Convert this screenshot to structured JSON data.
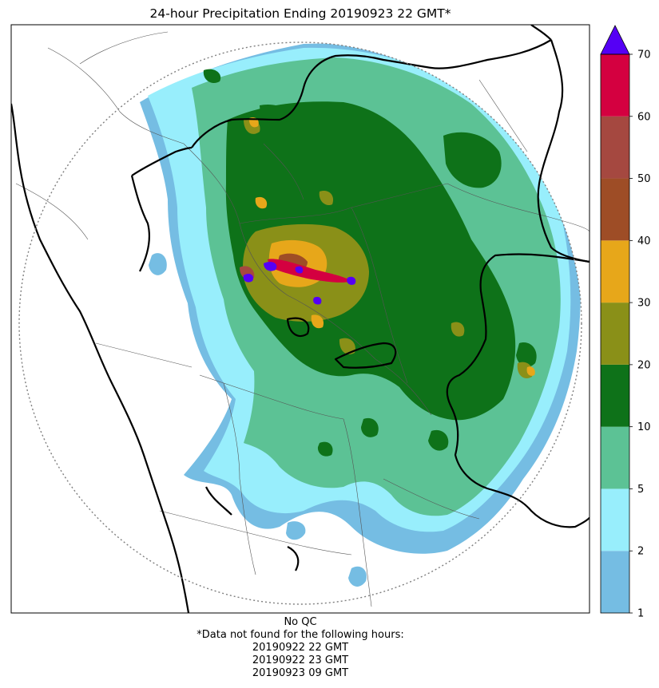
{
  "title": "24-hour Precipitation Ending 20190923 22 GMT*",
  "colorbar": {
    "ticks": [
      "1",
      "2",
      "5",
      "10",
      "20",
      "30",
      "40",
      "50",
      "60",
      "70"
    ],
    "bins": [
      {
        "from": 1,
        "to": 2,
        "color": "#75bde3"
      },
      {
        "from": 2,
        "to": 5,
        "color": "#98eefc"
      },
      {
        "from": 5,
        "to": 10,
        "color": "#5cc295"
      },
      {
        "from": 10,
        "to": 20,
        "color": "#0e7219"
      },
      {
        "from": 20,
        "to": 30,
        "color": "#8a9018"
      },
      {
        "from": 30,
        "to": 40,
        "color": "#e7a71a"
      },
      {
        "from": 40,
        "to": 50,
        "color": "#9e4d26"
      },
      {
        "from": 50,
        "to": 60,
        "color": "#a54840"
      },
      {
        "from": 60,
        "to": 70,
        "color": "#d40040"
      }
    ],
    "extend_color": "#5500f5",
    "units_note": ""
  },
  "footer": {
    "qc": "No QC",
    "missing_header": "*Data not found for the following hours:",
    "missing_hours": [
      "20190922 22 GMT",
      "20190922 23 GMT",
      "20190923 09 GMT"
    ]
  }
}
